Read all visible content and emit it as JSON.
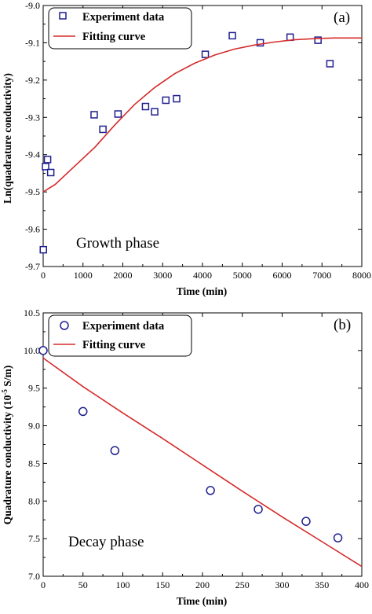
{
  "chart_data": [
    {
      "type": "scatter",
      "panel_label": "(a)",
      "annotation": "Growth phase",
      "xlabel": "Time (min)",
      "ylabel": "Ln(quadrature conductivity)",
      "xlim": [
        0,
        8000
      ],
      "ylim": [
        -9.7,
        -9.0
      ],
      "x_ticks": [
        0,
        1000,
        2000,
        3000,
        4000,
        5000,
        6000,
        7000,
        8000
      ],
      "y_ticks": [
        -9.7,
        -9.6,
        -9.5,
        -9.4,
        -9.3,
        -9.2,
        -9.1,
        -9.0
      ],
      "legend_position": "top-left",
      "series": [
        {
          "name": "Experiment data",
          "kind": "markers",
          "marker": "square",
          "color": "#1f1f8f",
          "points": [
            {
              "x": 5,
              "y": -9.655
            },
            {
              "x": 60,
              "y": -9.432
            },
            {
              "x": 110,
              "y": -9.413
            },
            {
              "x": 190,
              "y": -9.448
            },
            {
              "x": 1280,
              "y": -9.293
            },
            {
              "x": 1500,
              "y": -9.332
            },
            {
              "x": 1880,
              "y": -9.291
            },
            {
              "x": 2570,
              "y": -9.271
            },
            {
              "x": 2800,
              "y": -9.285
            },
            {
              "x": 3080,
              "y": -9.254
            },
            {
              "x": 3350,
              "y": -9.25
            },
            {
              "x": 4070,
              "y": -9.131
            },
            {
              "x": 4750,
              "y": -9.081
            },
            {
              "x": 5450,
              "y": -9.1
            },
            {
              "x": 6200,
              "y": -9.085
            },
            {
              "x": 6900,
              "y": -9.093
            },
            {
              "x": 7200,
              "y": -9.156
            }
          ]
        },
        {
          "name": "Fitting curve",
          "kind": "line",
          "color": "#d62a2a",
          "points": [
            {
              "x": 0,
              "y": -9.5
            },
            {
              "x": 300,
              "y": -9.48
            },
            {
              "x": 800,
              "y": -9.43
            },
            {
              "x": 1300,
              "y": -9.38
            },
            {
              "x": 1800,
              "y": -9.32
            },
            {
              "x": 2300,
              "y": -9.265
            },
            {
              "x": 2800,
              "y": -9.22
            },
            {
              "x": 3300,
              "y": -9.183
            },
            {
              "x": 3800,
              "y": -9.155
            },
            {
              "x": 4300,
              "y": -9.133
            },
            {
              "x": 4800,
              "y": -9.117
            },
            {
              "x": 5300,
              "y": -9.106
            },
            {
              "x": 5800,
              "y": -9.098
            },
            {
              "x": 6300,
              "y": -9.092
            },
            {
              "x": 6800,
              "y": -9.089
            },
            {
              "x": 7300,
              "y": -9.087
            },
            {
              "x": 8000,
              "y": -9.087
            }
          ]
        }
      ]
    },
    {
      "type": "scatter",
      "panel_label": "(b)",
      "annotation": "Decay phase",
      "xlabel": "Time (min)",
      "ylabel_main": "Quadrature conductivity (10",
      "ylabel_sup": "-5",
      "ylabel_tail": " S/m)",
      "xlim": [
        0,
        400
      ],
      "ylim": [
        7.0,
        10.5
      ],
      "x_ticks": [
        0,
        50,
        100,
        150,
        200,
        250,
        300,
        350,
        400
      ],
      "y_ticks": [
        7.0,
        7.5,
        8.0,
        8.5,
        9.0,
        9.5,
        10.0,
        10.5
      ],
      "legend_position": "top-left",
      "series": [
        {
          "name": "Experiment data",
          "kind": "markers",
          "marker": "circle",
          "color": "#1f1f8f",
          "points": [
            {
              "x": 0,
              "y": 10.0
            },
            {
              "x": 50,
              "y": 9.19
            },
            {
              "x": 90,
              "y": 8.67
            },
            {
              "x": 210,
              "y": 8.14
            },
            {
              "x": 270,
              "y": 7.89
            },
            {
              "x": 330,
              "y": 7.73
            },
            {
              "x": 370,
              "y": 7.51
            }
          ]
        },
        {
          "name": "Fitting curve",
          "kind": "line",
          "color": "#d62a2a",
          "points": [
            {
              "x": 0,
              "y": 9.9
            },
            {
              "x": 50,
              "y": 9.52
            },
            {
              "x": 100,
              "y": 9.17
            },
            {
              "x": 150,
              "y": 8.83
            },
            {
              "x": 200,
              "y": 8.48
            },
            {
              "x": 250,
              "y": 8.13
            },
            {
              "x": 300,
              "y": 7.79
            },
            {
              "x": 350,
              "y": 7.46
            },
            {
              "x": 400,
              "y": 7.13
            }
          ]
        }
      ]
    }
  ]
}
